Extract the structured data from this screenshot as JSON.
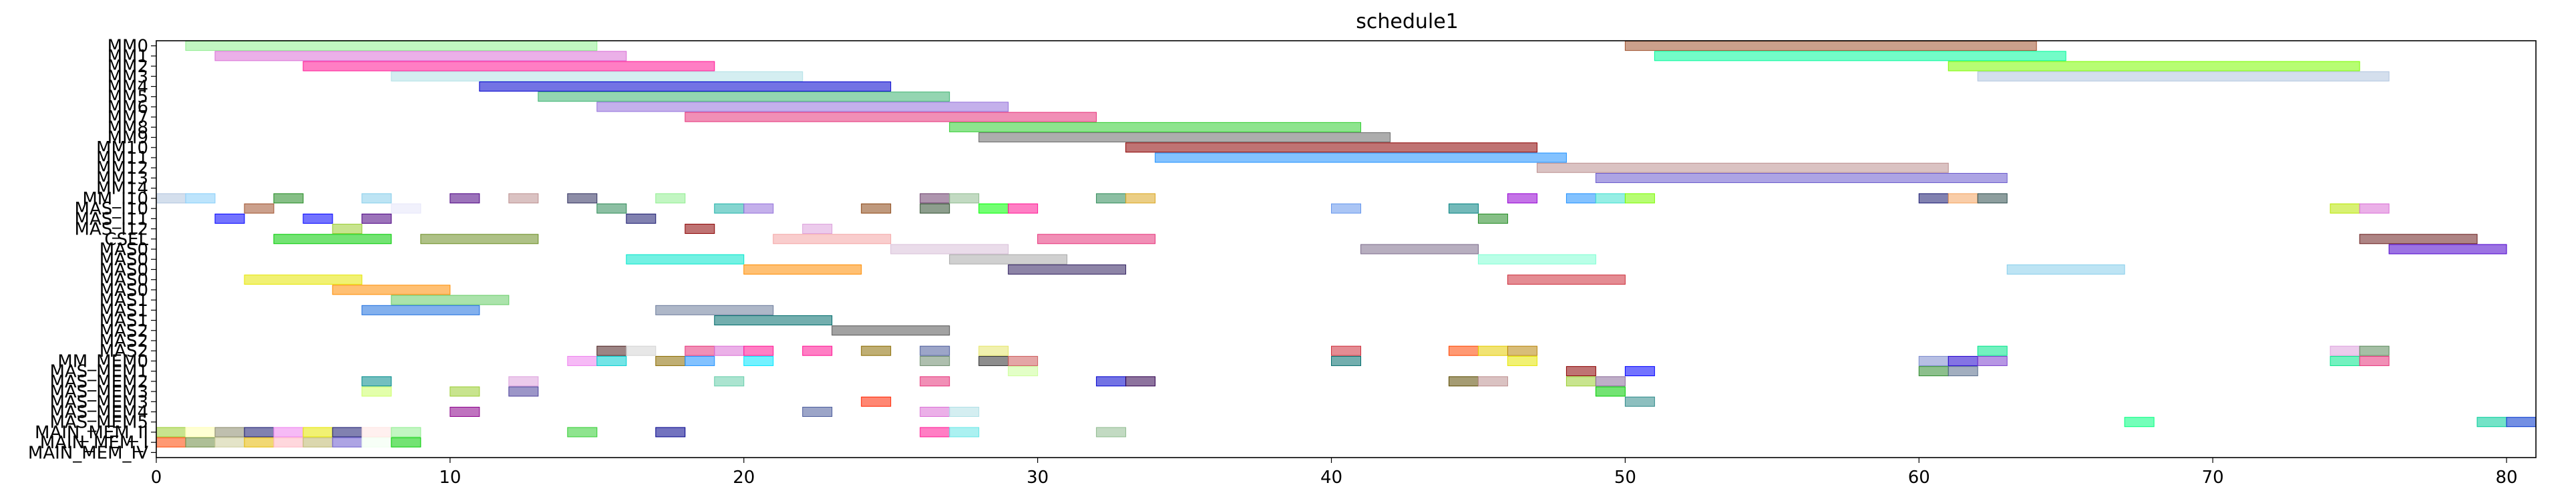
{
  "chart_data": {
    "type": "bar",
    "orientation": "horizontal",
    "chart_style": "gantt",
    "title": "schedule1",
    "xlabel": "",
    "ylabel": "",
    "xlim": [
      0,
      81
    ],
    "xticks": [
      0,
      10,
      20,
      30,
      40,
      50,
      60,
      70,
      80
    ],
    "grid": false,
    "rows": [
      "MM0",
      "MM1",
      "MM2",
      "MM3",
      "MM4",
      "MM5",
      "MM6",
      "MM7",
      "MM8",
      "MM9",
      "MM10",
      "MM11",
      "MM12",
      "MM13",
      "MM14",
      "MM_I10",
      "MAS_I10",
      "MAS_I11",
      "MAS_I12",
      "CSEL",
      "MAS0",
      "MAS0",
      "MAS0",
      "MAS0",
      "MAS0",
      "MAS1",
      "MAS1",
      "MAS1",
      "MAS2",
      "MAS2",
      "MAS2",
      "MM_MEM0",
      "MAS_MEM1",
      "MAS_MEM2",
      "MAS_MEM3",
      "MAS_MEM3",
      "MAS_MEM4",
      "MAS_MEM5",
      "MAIN_MEM_II",
      "MAIN_MEM_I",
      "MAIN_MEM_IV"
    ],
    "bars": [
      {
        "row": 0,
        "start": 1,
        "end": 15,
        "color": "#90ee90"
      },
      {
        "row": 0,
        "start": 50,
        "end": 64,
        "color": "#a0522d"
      },
      {
        "row": 1,
        "start": 2,
        "end": 16,
        "color": "#da70d6"
      },
      {
        "row": 1,
        "start": 51,
        "end": 65,
        "color": "#00fa9a"
      },
      {
        "row": 2,
        "start": 5,
        "end": 19,
        "color": "#ff1493"
      },
      {
        "row": 2,
        "start": 61,
        "end": 75,
        "color": "#7cfc00"
      },
      {
        "row": 3,
        "start": 8,
        "end": 22,
        "color": "#b0e0e6"
      },
      {
        "row": 3,
        "start": 62,
        "end": 76,
        "color": "#b0c4de"
      },
      {
        "row": 4,
        "start": 11,
        "end": 25,
        "color": "#0000cd"
      },
      {
        "row": 5,
        "start": 13,
        "end": 27,
        "color": "#3cb371"
      },
      {
        "row": 6,
        "start": 15,
        "end": 29,
        "color": "#9370db"
      },
      {
        "row": 7,
        "start": 18,
        "end": 32,
        "color": "#e6337a"
      },
      {
        "row": 8,
        "start": 27,
        "end": 41,
        "color": "#32cd32"
      },
      {
        "row": 9,
        "start": 28,
        "end": 42,
        "color": "#696969"
      },
      {
        "row": 10,
        "start": 33,
        "end": 47,
        "color": "#8b0000"
      },
      {
        "row": 11,
        "start": 34,
        "end": 48,
        "color": "#1e90ff"
      },
      {
        "row": 12,
        "start": 47,
        "end": 61,
        "color": "#bc8f8f"
      },
      {
        "row": 13,
        "start": 49,
        "end": 63,
        "color": "#6a5acd"
      },
      {
        "row": 15,
        "start": 0,
        "end": 1,
        "color": "#b0c4de"
      },
      {
        "row": 15,
        "start": 1,
        "end": 2,
        "color": "#87cefa"
      },
      {
        "row": 15,
        "start": 4,
        "end": 5,
        "color": "#228b22"
      },
      {
        "row": 15,
        "start": 7,
        "end": 8,
        "color": "#87ceeb"
      },
      {
        "row": 15,
        "start": 10,
        "end": 11,
        "color": "#4b0082"
      },
      {
        "row": 15,
        "start": 12,
        "end": 13,
        "color": "#bc8f8f"
      },
      {
        "row": 15,
        "start": 14,
        "end": 15,
        "color": "#2f2f5f"
      },
      {
        "row": 15,
        "start": 17,
        "end": 18,
        "color": "#90ee90"
      },
      {
        "row": 15,
        "start": 26,
        "end": 27,
        "color": "#6b3e6b"
      },
      {
        "row": 15,
        "start": 27,
        "end": 28,
        "color": "#8fbc8f"
      },
      {
        "row": 15,
        "start": 32,
        "end": 33,
        "color": "#2e8b57"
      },
      {
        "row": 15,
        "start": 33,
        "end": 34,
        "color": "#daa520"
      },
      {
        "row": 15,
        "start": 46,
        "end": 47,
        "color": "#9400d3"
      },
      {
        "row": 15,
        "start": 48,
        "end": 49,
        "color": "#1e90ff"
      },
      {
        "row": 15,
        "start": 49,
        "end": 50,
        "color": "#40e0d0"
      },
      {
        "row": 15,
        "start": 50,
        "end": 51,
        "color": "#7cfc00"
      },
      {
        "row": 15,
        "start": 60,
        "end": 61,
        "color": "#191970"
      },
      {
        "row": 15,
        "start": 61,
        "end": 62,
        "color": "#f4a460"
      },
      {
        "row": 15,
        "start": 62,
        "end": 63,
        "color": "#2f4f4f"
      },
      {
        "row": 16,
        "start": 3,
        "end": 4,
        "color": "#a0522d"
      },
      {
        "row": 16,
        "start": 8,
        "end": 9,
        "color": "#e6e6fa"
      },
      {
        "row": 16,
        "start": 15,
        "end": 16,
        "color": "#2e8b57"
      },
      {
        "row": 16,
        "start": 19,
        "end": 20,
        "color": "#20b2aa"
      },
      {
        "row": 16,
        "start": 20,
        "end": 21,
        "color": "#9370db"
      },
      {
        "row": 16,
        "start": 24,
        "end": 25,
        "color": "#8b4513"
      },
      {
        "row": 16,
        "start": 26,
        "end": 27,
        "color": "#2f4f2f"
      },
      {
        "row": 16,
        "start": 28,
        "end": 29,
        "color": "#00ff00"
      },
      {
        "row": 16,
        "start": 29,
        "end": 30,
        "color": "#ff1493"
      },
      {
        "row": 16,
        "start": 40,
        "end": 41,
        "color": "#6495ed"
      },
      {
        "row": 16,
        "start": 44,
        "end": 45,
        "color": "#008080"
      },
      {
        "row": 16,
        "start": 74,
        "end": 75,
        "color": "#b8e600"
      },
      {
        "row": 16,
        "start": 75,
        "end": 76,
        "color": "#da70d6"
      },
      {
        "row": 17,
        "start": 2,
        "end": 3,
        "color": "#0000ff"
      },
      {
        "row": 17,
        "start": 5,
        "end": 6,
        "color": "#0000ff"
      },
      {
        "row": 17,
        "start": 7,
        "end": 8,
        "color": "#4b0082"
      },
      {
        "row": 17,
        "start": 16,
        "end": 17,
        "color": "#191970"
      },
      {
        "row": 17,
        "start": 45,
        "end": 46,
        "color": "#228b22"
      },
      {
        "row": 18,
        "start": 6,
        "end": 7,
        "color": "#9acd32"
      },
      {
        "row": 18,
        "start": 18,
        "end": 19,
        "color": "#8b0000"
      },
      {
        "row": 18,
        "start": 22,
        "end": 23,
        "color": "#dda0dd"
      },
      {
        "row": 19,
        "start": 4,
        "end": 8,
        "color": "#00cc00"
      },
      {
        "row": 19,
        "start": 9,
        "end": 13,
        "color": "#6b8e23"
      },
      {
        "row": 19,
        "start": 21,
        "end": 25,
        "color": "#f4a4a4"
      },
      {
        "row": 19,
        "start": 30,
        "end": 34,
        "color": "#e6337a"
      },
      {
        "row": 19,
        "start": 75,
        "end": 79,
        "color": "#6b1f1f"
      },
      {
        "row": 20,
        "start": 25,
        "end": 29,
        "color": "#d8bfd8"
      },
      {
        "row": 20,
        "start": 41,
        "end": 45,
        "color": "#7b6b8b"
      },
      {
        "row": 20,
        "start": 76,
        "end": 80,
        "color": "#4b00cc"
      },
      {
        "row": 21,
        "start": 16,
        "end": 20,
        "color": "#00e6cc"
      },
      {
        "row": 21,
        "start": 27,
        "end": 31,
        "color": "#a9a9a9"
      },
      {
        "row": 21,
        "start": 45,
        "end": 49,
        "color": "#7fffd4"
      },
      {
        "row": 22,
        "start": 20,
        "end": 24,
        "color": "#ff8c00"
      },
      {
        "row": 22,
        "start": 29,
        "end": 33,
        "color": "#2f1f5f"
      },
      {
        "row": 22,
        "start": 63,
        "end": 67,
        "color": "#87ceeb"
      },
      {
        "row": 23,
        "start": 3,
        "end": 7,
        "color": "#e6e600"
      },
      {
        "row": 23,
        "start": 46,
        "end": 50,
        "color": "#cd2e3a"
      },
      {
        "row": 24,
        "start": 6,
        "end": 10,
        "color": "#ff8c00"
      },
      {
        "row": 25,
        "start": 8,
        "end": 12,
        "color": "#66cc66"
      },
      {
        "row": 26,
        "start": 7,
        "end": 11,
        "color": "#1e6fdf"
      },
      {
        "row": 26,
        "start": 17,
        "end": 21,
        "color": "#6b7b9b"
      },
      {
        "row": 27,
        "start": 19,
        "end": 23,
        "color": "#006b6b"
      },
      {
        "row": 28,
        "start": 23,
        "end": 27,
        "color": "#555555"
      },
      {
        "row": 30,
        "start": 15,
        "end": 16,
        "color": "#4b1f1f"
      },
      {
        "row": 30,
        "start": 16,
        "end": 17,
        "color": "#d3d3d3"
      },
      {
        "row": 30,
        "start": 18,
        "end": 19,
        "color": "#e6337a"
      },
      {
        "row": 30,
        "start": 19,
        "end": 20,
        "color": "#da70d6"
      },
      {
        "row": 30,
        "start": 20,
        "end": 21,
        "color": "#ff1493"
      },
      {
        "row": 30,
        "start": 22,
        "end": 23,
        "color": "#ff1493"
      },
      {
        "row": 30,
        "start": 24,
        "end": 25,
        "color": "#8b6b00"
      },
      {
        "row": 30,
        "start": 26,
        "end": 27,
        "color": "#4b5b9b"
      },
      {
        "row": 30,
        "start": 28,
        "end": 29,
        "color": "#e6e66b"
      },
      {
        "row": 30,
        "start": 40,
        "end": 41,
        "color": "#cd2e3a"
      },
      {
        "row": 30,
        "start": 44,
        "end": 45,
        "color": "#ff4500"
      },
      {
        "row": 30,
        "start": 45,
        "end": 46,
        "color": "#e6cc00"
      },
      {
        "row": 30,
        "start": 46,
        "end": 47,
        "color": "#b8860b"
      },
      {
        "row": 30,
        "start": 62,
        "end": 63,
        "color": "#00e68a"
      },
      {
        "row": 30,
        "start": 74,
        "end": 75,
        "color": "#dda0dd"
      },
      {
        "row": 30,
        "start": 75,
        "end": 76,
        "color": "#5b8b5b"
      },
      {
        "row": 31,
        "start": 14,
        "end": 15,
        "color": "#ee82ee"
      },
      {
        "row": 31,
        "start": 15,
        "end": 16,
        "color": "#00ced1"
      },
      {
        "row": 31,
        "start": 17,
        "end": 18,
        "color": "#8b6b00"
      },
      {
        "row": 31,
        "start": 18,
        "end": 19,
        "color": "#1e90ff"
      },
      {
        "row": 31,
        "start": 20,
        "end": 21,
        "color": "#00e6ff"
      },
      {
        "row": 31,
        "start": 26,
        "end": 27,
        "color": "#6b8b6b"
      },
      {
        "row": 31,
        "start": 28,
        "end": 29,
        "color": "#2f2f2f"
      },
      {
        "row": 31,
        "start": 29,
        "end": 30,
        "color": "#cd5c5c"
      },
      {
        "row": 31,
        "start": 40,
        "end": 41,
        "color": "#006b6b"
      },
      {
        "row": 31,
        "start": 46,
        "end": 47,
        "color": "#e6e600"
      },
      {
        "row": 31,
        "start": 60,
        "end": 61,
        "color": "#7b8bcd"
      },
      {
        "row": 31,
        "start": 61,
        "end": 62,
        "color": "#1f00cd"
      },
      {
        "row": 31,
        "start": 62,
        "end": 63,
        "color": "#7b3fcd"
      },
      {
        "row": 31,
        "start": 74,
        "end": 75,
        "color": "#00e68a"
      },
      {
        "row": 31,
        "start": 75,
        "end": 76,
        "color": "#e6337a"
      },
      {
        "row": 32,
        "start": 29,
        "end": 30,
        "color": "#ccff99"
      },
      {
        "row": 32,
        "start": 48,
        "end": 49,
        "color": "#8b0000"
      },
      {
        "row": 32,
        "start": 50,
        "end": 51,
        "color": "#0000ff"
      },
      {
        "row": 32,
        "start": 60,
        "end": 61,
        "color": "#2e8b2e"
      },
      {
        "row": 32,
        "start": 61,
        "end": 62,
        "color": "#556b8b"
      },
      {
        "row": 33,
        "start": 7,
        "end": 8,
        "color": "#008b8b"
      },
      {
        "row": 33,
        "start": 12,
        "end": 13,
        "color": "#dda0dd"
      },
      {
        "row": 33,
        "start": 19,
        "end": 20,
        "color": "#66cdaa"
      },
      {
        "row": 33,
        "start": 26,
        "end": 27,
        "color": "#e6337a"
      },
      {
        "row": 33,
        "start": 32,
        "end": 33,
        "color": "#0000cd"
      },
      {
        "row": 33,
        "start": 33,
        "end": 34,
        "color": "#2f004f"
      },
      {
        "row": 33,
        "start": 44,
        "end": 45,
        "color": "#5b4b00"
      },
      {
        "row": 33,
        "start": 45,
        "end": 46,
        "color": "#bc8f8f"
      },
      {
        "row": 33,
        "start": 48,
        "end": 49,
        "color": "#9acd32"
      },
      {
        "row": 33,
        "start": 49,
        "end": 50,
        "color": "#8b6b9b"
      },
      {
        "row": 34,
        "start": 7,
        "end": 8,
        "color": "#ccff66"
      },
      {
        "row": 34,
        "start": 10,
        "end": 11,
        "color": "#9acd32"
      },
      {
        "row": 34,
        "start": 12,
        "end": 13,
        "color": "#4b3f9b"
      },
      {
        "row": 34,
        "start": 49,
        "end": 50,
        "color": "#00cc00"
      },
      {
        "row": 35,
        "start": 24,
        "end": 25,
        "color": "#ff2400"
      },
      {
        "row": 35,
        "start": 50,
        "end": 51,
        "color": "#2f8b8b"
      },
      {
        "row": 36,
        "start": 10,
        "end": 11,
        "color": "#8b008b"
      },
      {
        "row": 36,
        "start": 22,
        "end": 23,
        "color": "#4b5b9b"
      },
      {
        "row": 36,
        "start": 26,
        "end": 27,
        "color": "#da70d6"
      },
      {
        "row": 36,
        "start": 27,
        "end": 28,
        "color": "#b0e0e6"
      },
      {
        "row": 37,
        "start": 67,
        "end": 68,
        "color": "#00ff7f"
      },
      {
        "row": 37,
        "start": 79,
        "end": 80,
        "color": "#00cc99"
      },
      {
        "row": 37,
        "start": 80,
        "end": 81,
        "color": "#0033cc"
      },
      {
        "row": 38,
        "start": 0,
        "end": 1,
        "color": "#9acd32"
      },
      {
        "row": 38,
        "start": 1,
        "end": 2,
        "color": "#ffffb0"
      },
      {
        "row": 38,
        "start": 2,
        "end": 3,
        "color": "#8b8b6b"
      },
      {
        "row": 38,
        "start": 3,
        "end": 4,
        "color": "#191970"
      },
      {
        "row": 38,
        "start": 4,
        "end": 5,
        "color": "#ee82ee"
      },
      {
        "row": 38,
        "start": 5,
        "end": 6,
        "color": "#e6e600"
      },
      {
        "row": 38,
        "start": 6,
        "end": 7,
        "color": "#191970"
      },
      {
        "row": 38,
        "start": 7,
        "end": 8,
        "color": "#ffe4e1"
      },
      {
        "row": 38,
        "start": 8,
        "end": 9,
        "color": "#90ee90"
      },
      {
        "row": 38,
        "start": 14,
        "end": 15,
        "color": "#32cd32"
      },
      {
        "row": 38,
        "start": 17,
        "end": 18,
        "color": "#00008b"
      },
      {
        "row": 38,
        "start": 26,
        "end": 27,
        "color": "#ff1493"
      },
      {
        "row": 38,
        "start": 27,
        "end": 28,
        "color": "#66e6e6"
      },
      {
        "row": 38,
        "start": 32,
        "end": 33,
        "color": "#8fbc8f"
      },
      {
        "row": 39,
        "start": 0,
        "end": 1,
        "color": "#ff4500"
      },
      {
        "row": 39,
        "start": 1,
        "end": 2,
        "color": "#6b8b3f"
      },
      {
        "row": 39,
        "start": 2,
        "end": 3,
        "color": "#cdcd9b"
      },
      {
        "row": 39,
        "start": 3,
        "end": 4,
        "color": "#e6b800"
      },
      {
        "row": 39,
        "start": 4,
        "end": 5,
        "color": "#ffb6c1"
      },
      {
        "row": 39,
        "start": 5,
        "end": 6,
        "color": "#bdb76b"
      },
      {
        "row": 39,
        "start": 6,
        "end": 7,
        "color": "#6a5acd"
      },
      {
        "row": 39,
        "start": 7,
        "end": 8,
        "color": "#f0fff0"
      },
      {
        "row": 39,
        "start": 8,
        "end": 9,
        "color": "#00cc00"
      }
    ]
  }
}
